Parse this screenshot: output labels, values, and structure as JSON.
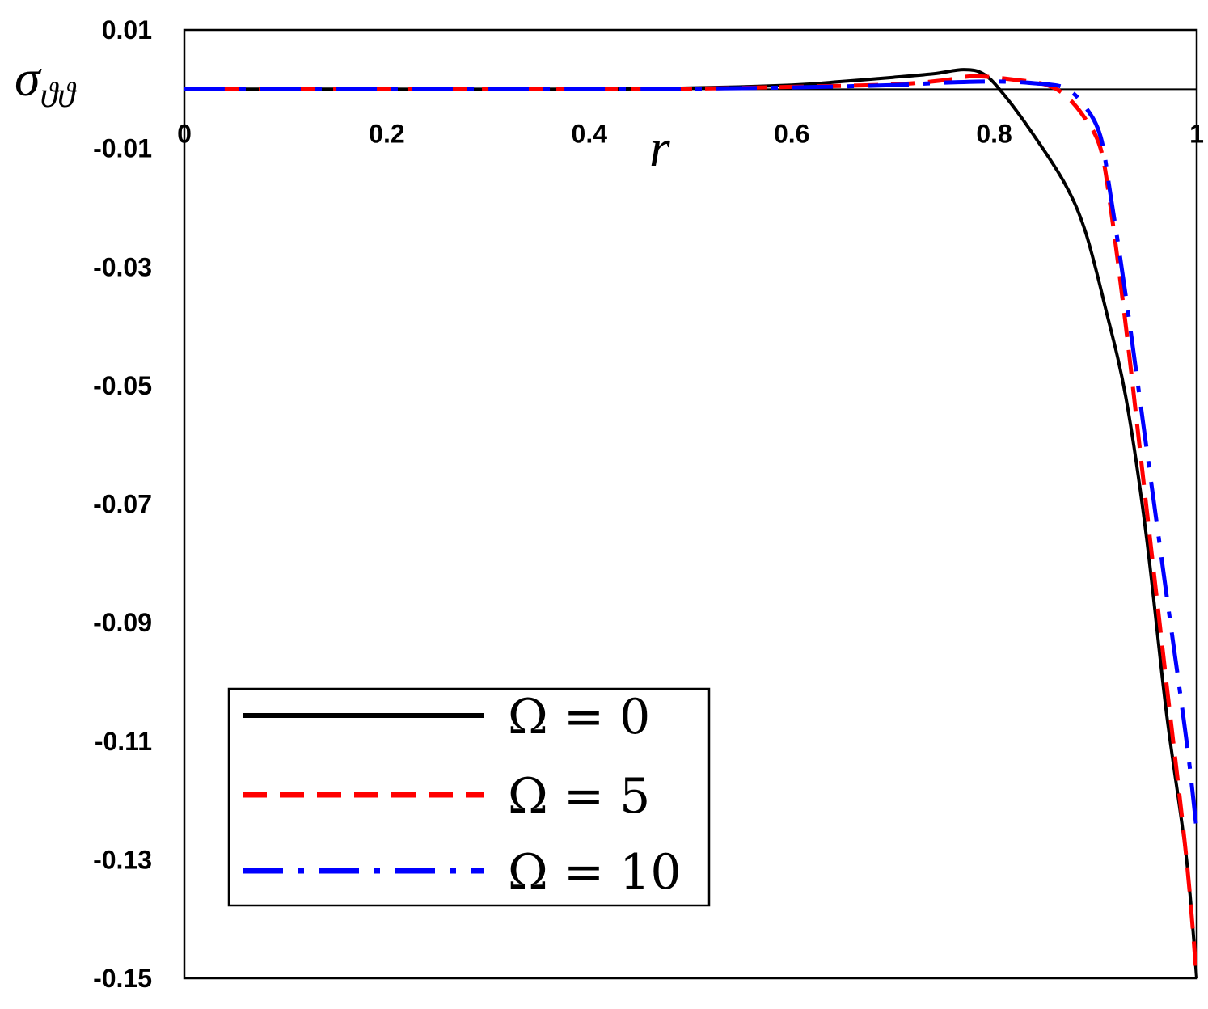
{
  "chart_data": {
    "type": "line",
    "title": "",
    "xlabel": "r",
    "ylabel": "σ_ϑϑ",
    "xlim": [
      0,
      1
    ],
    "ylim": [
      -0.15,
      0.01
    ],
    "x_ticks": [
      "0",
      "0.2",
      "0.4",
      "0.6",
      "0.8",
      "1"
    ],
    "x_tick_values": [
      0,
      0.2,
      0.4,
      0.6,
      0.8,
      1
    ],
    "y_ticks": [
      "0.01",
      "-0.01",
      "-0.03",
      "-0.05",
      "-0.07",
      "-0.09",
      "-0.11",
      "-0.13",
      "-0.15"
    ],
    "y_tick_values": [
      0.01,
      -0.01,
      -0.03,
      -0.05,
      -0.07,
      -0.09,
      -0.11,
      -0.13,
      -0.15
    ],
    "grid": false,
    "legend_position": "bottom-left",
    "series": [
      {
        "name": "Ω = 0",
        "color": "#000000",
        "style": "solid",
        "x": [
          0,
          0.2,
          0.4,
          0.5,
          0.6,
          0.65,
          0.7,
          0.74,
          0.77,
          0.79,
          0.81,
          0.84,
          0.87,
          0.89,
          0.91,
          0.93,
          0.95,
          0.97,
          0.99,
          1.0
        ],
        "y": [
          0,
          0,
          0,
          0.0002,
          0.0007,
          0.0013,
          0.002,
          0.0026,
          0.0033,
          0.0025,
          -0.001,
          -0.008,
          -0.016,
          -0.024,
          -0.037,
          -0.052,
          -0.075,
          -0.105,
          -0.13,
          -0.15
        ]
      },
      {
        "name": "Ω = 5",
        "color": "#ff0000",
        "style": "dashed",
        "x": [
          0,
          0.2,
          0.4,
          0.5,
          0.6,
          0.7,
          0.75,
          0.78,
          0.82,
          0.85,
          0.87,
          0.89,
          0.905,
          0.915,
          0.93,
          0.95,
          0.97,
          0.99,
          1.0
        ],
        "y": [
          0,
          0,
          0,
          0.0001,
          0.0004,
          0.0008,
          0.0015,
          0.0022,
          0.0016,
          0.0008,
          -0.001,
          -0.005,
          -0.01,
          -0.02,
          -0.04,
          -0.07,
          -0.1,
          -0.13,
          -0.15
        ]
      },
      {
        "name": "Ω = 10",
        "color": "#0000ff",
        "style": "dash-dot",
        "x": [
          0,
          0.2,
          0.4,
          0.5,
          0.6,
          0.7,
          0.75,
          0.8,
          0.84,
          0.87,
          0.89,
          0.905,
          0.915,
          0.93,
          0.95,
          0.97,
          0.99,
          1.0
        ],
        "y": [
          0,
          0,
          0,
          0.0001,
          0.0003,
          0.0007,
          0.0011,
          0.0013,
          0.001,
          0.0002,
          -0.003,
          -0.008,
          -0.018,
          -0.035,
          -0.06,
          -0.085,
          -0.11,
          -0.125
        ]
      }
    ]
  }
}
